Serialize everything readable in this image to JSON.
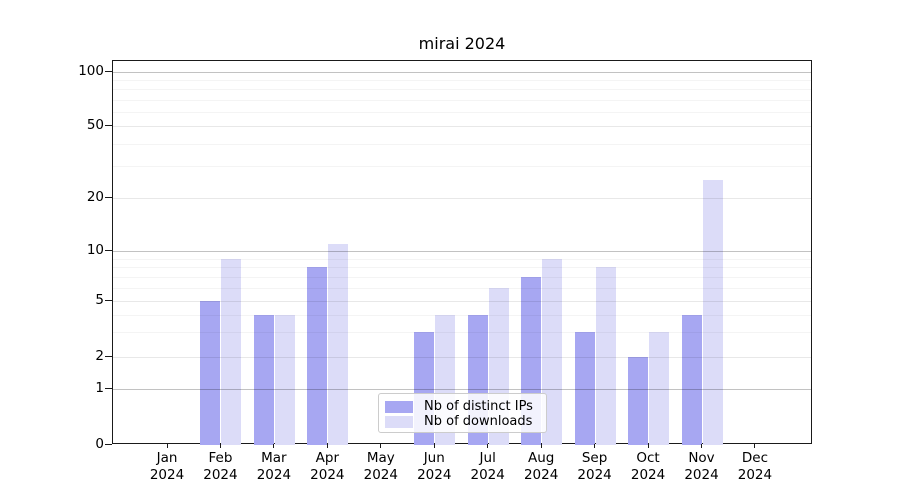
{
  "chart_data": {
    "type": "bar",
    "title": "mirai 2024",
    "categories": [
      "Jan",
      "Feb",
      "Mar",
      "Apr",
      "May",
      "Jun",
      "Jul",
      "Aug",
      "Sep",
      "Oct",
      "Nov",
      "Dec"
    ],
    "x_tick_second_line": "2024",
    "series": [
      {
        "name": "Nb of distinct IPs",
        "color": "#a7a7f2",
        "values": [
          0,
          5,
          4,
          8,
          0,
          3,
          4,
          7,
          3,
          2,
          4,
          0
        ]
      },
      {
        "name": "Nb of downloads",
        "color": "#dcdcf8",
        "values": [
          0,
          9,
          4,
          11,
          0,
          4,
          6,
          9,
          8,
          3,
          25,
          0
        ]
      }
    ],
    "y_axis": {
      "scale": "log with zero baseline",
      "ticks": [
        0,
        1,
        2,
        5,
        10,
        20,
        50,
        100
      ],
      "minor_gridlines": [
        3,
        4,
        6,
        7,
        8,
        9,
        30,
        40,
        60,
        70,
        80,
        90
      ],
      "ylim": [
        0,
        115
      ]
    },
    "legend": {
      "position": "lower center"
    },
    "grid": true
  }
}
